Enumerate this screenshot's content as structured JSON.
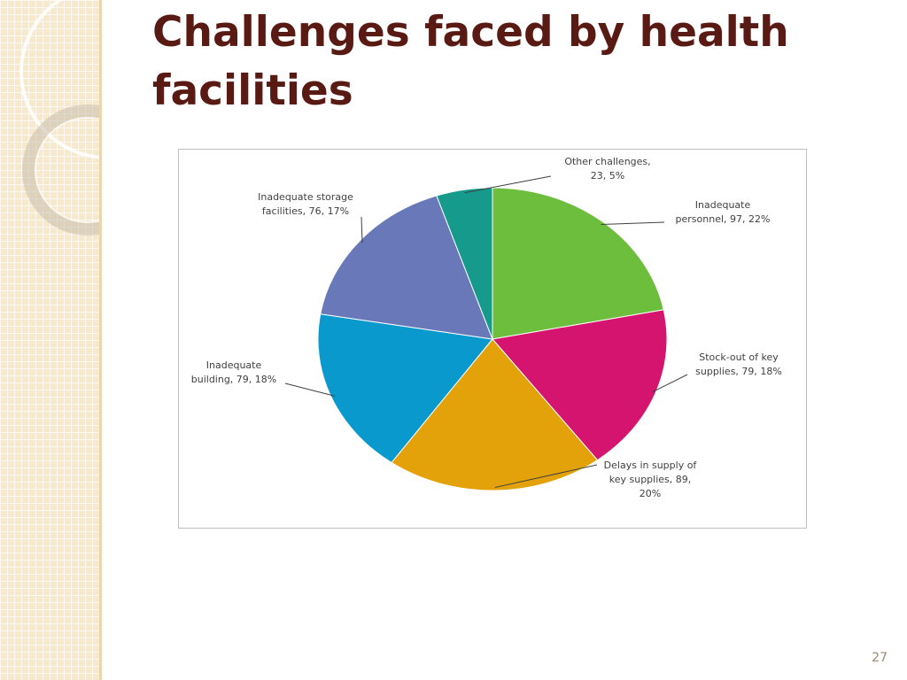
{
  "slide": {
    "title": "Challenges faced by health facilities",
    "page_number": "27"
  },
  "colors": {
    "title": "#5a1a14",
    "panel": "#f6e9cc"
  },
  "chart_data": {
    "type": "pie",
    "title": "",
    "slices": [
      {
        "label": "Inadequate personnel",
        "value": 97,
        "percent": 22,
        "color": "#6dbe3c",
        "data_label": [
          "Inadequate",
          "personnel, 97, 22%"
        ]
      },
      {
        "label": "Stock-out of key supplies",
        "value": 79,
        "percent": 18,
        "color": "#d4146e",
        "data_label": [
          "Stock-out of key",
          "supplies, 79, 18%"
        ]
      },
      {
        "label": "Delays in supply of key supplies",
        "value": 89,
        "percent": 20,
        "color": "#e4a20a",
        "data_label": [
          "Delays in supply of",
          "key supplies, 89,",
          "20%"
        ]
      },
      {
        "label": "Inadequate building",
        "value": 79,
        "percent": 18,
        "color": "#0999cc",
        "data_label": [
          "Inadequate",
          "building, 79, 18%"
        ]
      },
      {
        "label": "Inadequate storage facilities",
        "value": 76,
        "percent": 17,
        "color": "#6878b8",
        "data_label": [
          "Inadequate storage",
          "facilities, 76, 17%"
        ]
      },
      {
        "label": "Other challenges",
        "value": 23,
        "percent": 5,
        "color": "#159a8c",
        "data_label": [
          "Other challenges,",
          "23, 5%"
        ]
      }
    ],
    "start": "12 o'clock",
    "direction": "clockwise",
    "legend": "none"
  }
}
